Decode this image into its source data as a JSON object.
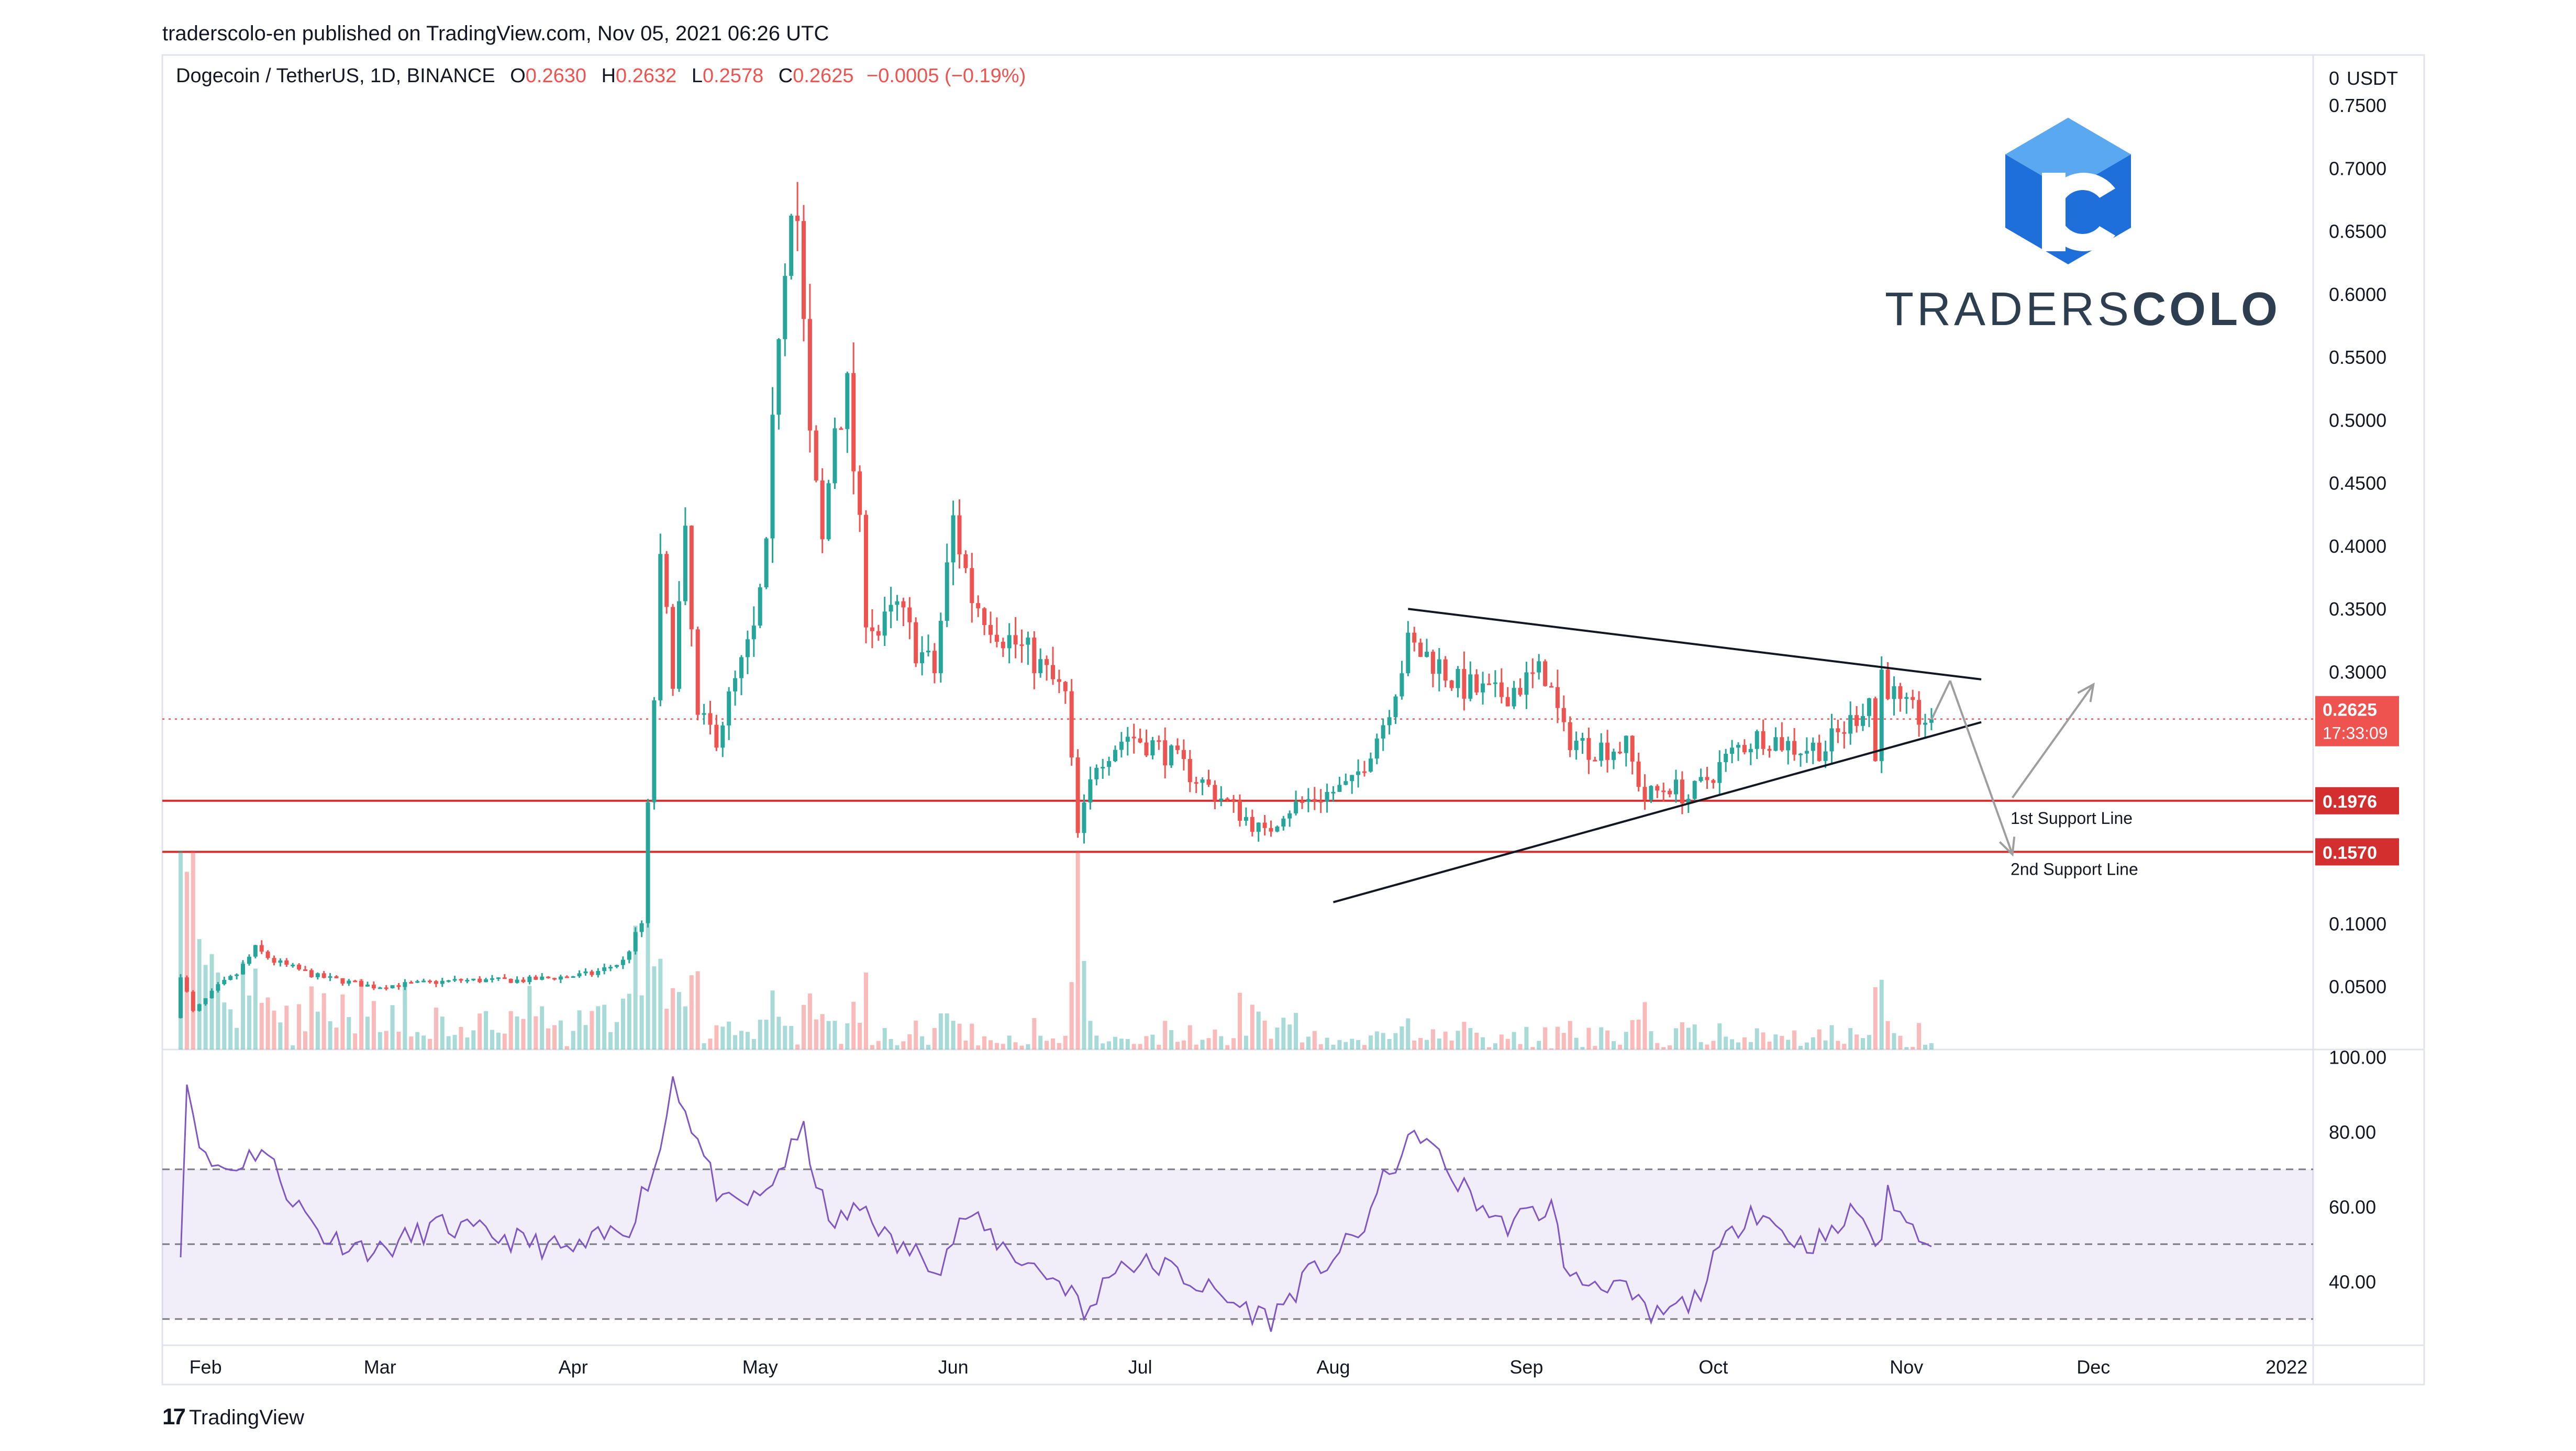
{
  "publisher_line": "traderscolo-en published on TradingView.com, Nov 05, 2021 06:26 UTC",
  "legend": {
    "symbol": "Dogecoin / TetherUS, 1D, BINANCE",
    "o_label": "O",
    "o": "0.2630",
    "h_label": "H",
    "h": "0.2632",
    "l_label": "L",
    "l": "0.2578",
    "c_label": "C",
    "c": "0.2625",
    "change": "−0.0005 (−0.19%)"
  },
  "brand": {
    "name_light": "TRADERS",
    "name_bold": "COLO"
  },
  "footer": {
    "logo_glyph": "17",
    "logo_text": "TradingView"
  },
  "colors": {
    "up": "#26a69a",
    "down": "#ef5350",
    "rsi": "#7e57c2",
    "support": "#d32f2f",
    "brand": "#1e6fd9"
  },
  "chart_data": [
    {
      "type": "candlestick",
      "title": "Dogecoin / TetherUS, 1D, BINANCE",
      "currency_label": "USDT",
      "scale_marker": "0",
      "y_ticks": [
        "0.7500",
        "0.7000",
        "0.6500",
        "0.6000",
        "0.5500",
        "0.5000",
        "0.4500",
        "0.4000",
        "0.3500",
        "0.3000",
        "0.1000",
        "0.0500"
      ],
      "x_ticks": [
        "Feb",
        "Mar",
        "Apr",
        "May",
        "Jun",
        "Jul",
        "Aug",
        "Sep",
        "Oct",
        "Nov",
        "Dec",
        "2022"
      ],
      "ylim": [
        0.0,
        0.79
      ],
      "last_price": "0.2625",
      "countdown": "17:33:09",
      "support_lines": [
        {
          "label": "1st Support Line",
          "value": "0.1976"
        },
        {
          "label": "2nd Support Line",
          "value": "0.1570"
        }
      ],
      "triangle": {
        "upper": [
          [
            "2021-08-13",
            0.35
          ],
          [
            "2021-11-13",
            0.294
          ]
        ],
        "lower": [
          [
            "2021-08-01",
            0.117
          ],
          [
            "2021-11-13",
            0.26
          ]
        ]
      },
      "projections": [
        {
          "from": [
            "2021-11-08",
            0.293
          ],
          "to": [
            "2021-11-18",
            0.155
          ]
        },
        {
          "from": [
            "2021-11-18",
            0.2
          ],
          "to": [
            "2021-12-01",
            0.29
          ]
        }
      ],
      "price_path": [
        [
          "2021-01-28",
          0.025
        ],
        [
          "2021-01-29",
          0.06
        ],
        [
          "2021-01-31",
          0.03
        ],
        [
          "2021-02-04",
          0.05
        ],
        [
          "2021-02-07",
          0.06
        ],
        [
          "2021-02-10",
          0.08
        ],
        [
          "2021-02-13",
          0.07
        ],
        [
          "2021-02-20",
          0.058
        ],
        [
          "2021-03-01",
          0.05
        ],
        [
          "2021-03-15",
          0.055
        ],
        [
          "2021-03-25",
          0.055
        ],
        [
          "2021-04-05",
          0.06
        ],
        [
          "2021-04-10",
          0.07
        ],
        [
          "2021-04-13",
          0.1
        ],
        [
          "2021-04-15",
          0.28
        ],
        [
          "2021-04-16",
          0.38
        ],
        [
          "2021-04-18",
          0.3
        ],
        [
          "2021-04-20",
          0.4
        ],
        [
          "2021-04-22",
          0.26
        ],
        [
          "2021-04-25",
          0.25
        ],
        [
          "2021-04-28",
          0.29
        ],
        [
          "2021-05-01",
          0.33
        ],
        [
          "2021-05-03",
          0.39
        ],
        [
          "2021-05-05",
          0.58
        ],
        [
          "2021-05-07",
          0.69
        ],
        [
          "2021-05-08",
          0.66
        ],
        [
          "2021-05-10",
          0.48
        ],
        [
          "2021-05-12",
          0.4
        ],
        [
          "2021-05-14",
          0.5
        ],
        [
          "2021-05-16",
          0.52
        ],
        [
          "2021-05-19",
          0.35
        ],
        [
          "2021-05-21",
          0.33
        ],
        [
          "2021-05-24",
          0.35
        ],
        [
          "2021-05-27",
          0.32
        ],
        [
          "2021-05-30",
          0.3
        ],
        [
          "2021-06-02",
          0.42
        ],
        [
          "2021-06-05",
          0.36
        ],
        [
          "2021-06-10",
          0.33
        ],
        [
          "2021-06-15",
          0.31
        ],
        [
          "2021-06-20",
          0.28
        ],
        [
          "2021-06-22",
          0.17
        ],
        [
          "2021-06-25",
          0.23
        ],
        [
          "2021-06-30",
          0.25
        ],
        [
          "2021-07-05",
          0.24
        ],
        [
          "2021-07-10",
          0.22
        ],
        [
          "2021-07-15",
          0.2
        ],
        [
          "2021-07-20",
          0.18
        ],
        [
          "2021-07-22",
          0.17
        ],
        [
          "2021-07-25",
          0.19
        ],
        [
          "2021-07-30",
          0.2
        ],
        [
          "2021-08-05",
          0.21
        ],
        [
          "2021-08-10",
          0.26
        ],
        [
          "2021-08-14",
          0.32
        ],
        [
          "2021-08-18",
          0.31
        ],
        [
          "2021-08-22",
          0.29
        ],
        [
          "2021-08-28",
          0.28
        ],
        [
          "2021-09-05",
          0.3
        ],
        [
          "2021-09-08",
          0.25
        ],
        [
          "2021-09-12",
          0.24
        ],
        [
          "2021-09-18",
          0.24
        ],
        [
          "2021-09-21",
          0.2
        ],
        [
          "2021-09-25",
          0.21
        ],
        [
          "2021-09-28",
          0.2
        ],
        [
          "2021-10-02",
          0.22
        ],
        [
          "2021-10-06",
          0.24
        ],
        [
          "2021-10-10",
          0.25
        ],
        [
          "2021-10-15",
          0.24
        ],
        [
          "2021-10-20",
          0.24
        ],
        [
          "2021-10-24",
          0.26
        ],
        [
          "2021-10-27",
          0.28
        ],
        [
          "2021-10-28",
          0.23
        ],
        [
          "2021-10-29",
          0.3
        ],
        [
          "2021-11-01",
          0.27
        ],
        [
          "2021-11-05",
          0.2625
        ]
      ]
    },
    {
      "type": "line",
      "title": "",
      "y_ticks": [
        "100.00",
        "80.00",
        "60.00",
        "40.00"
      ],
      "ylim": [
        23,
        102
      ],
      "band": [
        30,
        70
      ],
      "midline": 50,
      "rsi_path": [
        [
          "2021-01-28",
          50
        ],
        [
          "2021-01-29",
          93
        ],
        [
          "2021-02-01",
          72
        ],
        [
          "2021-02-05",
          70
        ],
        [
          "2021-02-10",
          76
        ],
        [
          "2021-02-15",
          62
        ],
        [
          "2021-02-20",
          52
        ],
        [
          "2021-03-01",
          48
        ],
        [
          "2021-03-10",
          55
        ],
        [
          "2021-03-20",
          52
        ],
        [
          "2021-04-01",
          48
        ],
        [
          "2021-04-10",
          55
        ],
        [
          "2021-04-15",
          75
        ],
        [
          "2021-04-17",
          95
        ],
        [
          "2021-04-20",
          82
        ],
        [
          "2021-04-25",
          60
        ],
        [
          "2021-05-01",
          62
        ],
        [
          "2021-05-08",
          80
        ],
        [
          "2021-05-12",
          55
        ],
        [
          "2021-05-18",
          60
        ],
        [
          "2021-05-22",
          50
        ],
        [
          "2021-05-30",
          45
        ],
        [
          "2021-06-03",
          58
        ],
        [
          "2021-06-10",
          48
        ],
        [
          "2021-06-20",
          38
        ],
        [
          "2021-06-22",
          30
        ],
        [
          "2021-06-27",
          45
        ],
        [
          "2021-07-05",
          44
        ],
        [
          "2021-07-15",
          35
        ],
        [
          "2021-07-22",
          30
        ],
        [
          "2021-07-27",
          40
        ],
        [
          "2021-08-05",
          52
        ],
        [
          "2021-08-10",
          70
        ],
        [
          "2021-08-15",
          80
        ],
        [
          "2021-08-20",
          68
        ],
        [
          "2021-08-28",
          55
        ],
        [
          "2021-09-05",
          60
        ],
        [
          "2021-09-08",
          40
        ],
        [
          "2021-09-15",
          40
        ],
        [
          "2021-09-21",
          30
        ],
        [
          "2021-09-28",
          35
        ],
        [
          "2021-10-02",
          48
        ],
        [
          "2021-10-07",
          60
        ],
        [
          "2021-10-15",
          50
        ],
        [
          "2021-10-20",
          52
        ],
        [
          "2021-10-24",
          60
        ],
        [
          "2021-10-28",
          48
        ],
        [
          "2021-10-29",
          65
        ],
        [
          "2021-11-01",
          55
        ],
        [
          "2021-11-05",
          52
        ]
      ]
    }
  ]
}
